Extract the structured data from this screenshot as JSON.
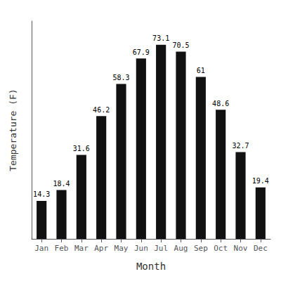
{
  "chart_data": {
    "type": "bar",
    "categories": [
      "Jan",
      "Feb",
      "Mar",
      "Apr",
      "May",
      "Jun",
      "Jul",
      "Aug",
      "Sep",
      "Oct",
      "Nov",
      "Dec"
    ],
    "values": [
      14.3,
      18.4,
      31.6,
      46.2,
      58.3,
      67.9,
      73.1,
      70.5,
      61.0,
      48.6,
      32.7,
      19.4
    ],
    "color": "#111111",
    "xlabel": "Month",
    "ylabel": "Temperature (F)",
    "ylim": [
      0,
      82
    ],
    "grid": false,
    "tick_labels": "x",
    "data_labels": true
  }
}
